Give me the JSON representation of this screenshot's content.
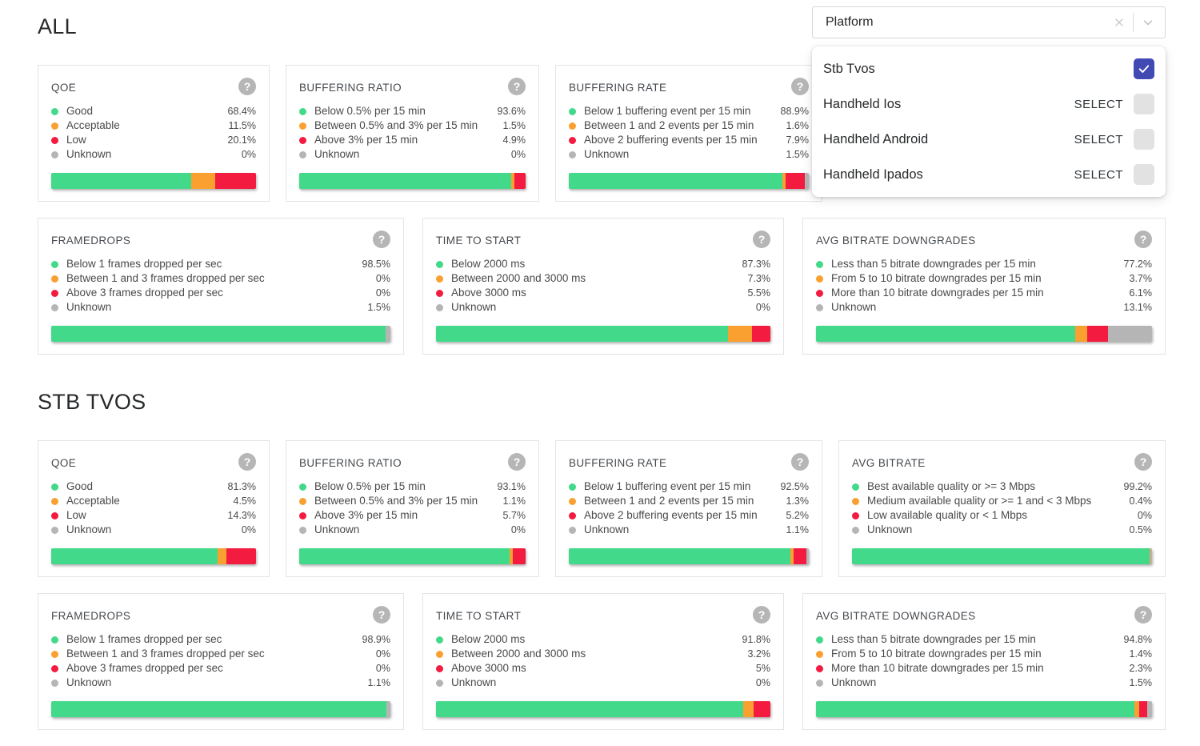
{
  "colors": {
    "good": "#43d98b",
    "acceptable": "#faa030",
    "low": "#f31b40",
    "unknown": "#b5b5b5",
    "checkbox_checked": "#4149b2"
  },
  "filter": {
    "label": "Platform",
    "options": [
      {
        "label": "Stb Tvos",
        "selected": true,
        "select_label": ""
      },
      {
        "label": "Handheld Ios",
        "selected": false,
        "select_label": "SELECT"
      },
      {
        "label": "Handheld Android",
        "selected": false,
        "select_label": "SELECT"
      },
      {
        "label": "Handheld Ipados",
        "selected": false,
        "select_label": "SELECT"
      }
    ]
  },
  "sections": [
    {
      "title": "ALL",
      "top_row": [
        {
          "kind": "qoe",
          "title": "QOE",
          "items": [
            {
              "level": "good",
              "label": "Good",
              "value": "68.4%",
              "pct": 68.4
            },
            {
              "level": "acceptable",
              "label": "Acceptable",
              "value": "11.5%",
              "pct": 11.5
            },
            {
              "level": "low",
              "label": "Low",
              "value": "20.1%",
              "pct": 20.1
            },
            {
              "level": "unknown",
              "label": "Unknown",
              "value": "0%",
              "pct": 0
            }
          ]
        },
        {
          "kind": "buffering-ratio",
          "title": "BUFFERING RATIO",
          "items": [
            {
              "level": "good",
              "label": "Below 0.5% per 15 min",
              "value": "93.6%",
              "pct": 93.6
            },
            {
              "level": "acceptable",
              "label": "Between 0.5% and 3% per 15 min",
              "value": "1.5%",
              "pct": 1.5
            },
            {
              "level": "low",
              "label": "Above 3% per 15 min",
              "value": "4.9%",
              "pct": 4.9
            },
            {
              "level": "unknown",
              "label": "Unknown",
              "value": "0%",
              "pct": 0
            }
          ]
        },
        {
          "kind": "buffering-rate",
          "title": "BUFFERING RATE",
          "items": [
            {
              "level": "good",
              "label": "Below 1 buffering event per 15 min",
              "value": "88.9%",
              "pct": 88.9
            },
            {
              "level": "acceptable",
              "label": "Between 1 and 2 events per 15 min",
              "value": "1.6%",
              "pct": 1.6
            },
            {
              "level": "low",
              "label": "Above 2 buffering events per 15 min",
              "value": "7.9%",
              "pct": 7.9
            },
            {
              "level": "unknown",
              "label": "Unknown",
              "value": "1.5%",
              "pct": 1.5
            }
          ]
        }
      ],
      "bottom_row": [
        {
          "kind": "framedrops",
          "title": "FRAMEDROPS",
          "items": [
            {
              "level": "good",
              "label": "Below 1 frames dropped per sec",
              "value": "98.5%",
              "pct": 98.5
            },
            {
              "level": "acceptable",
              "label": "Between 1 and 3 frames dropped per sec",
              "value": "0%",
              "pct": 0
            },
            {
              "level": "low",
              "label": "Above 3 frames dropped per sec",
              "value": "0%",
              "pct": 0
            },
            {
              "level": "unknown",
              "label": "Unknown",
              "value": "1.5%",
              "pct": 1.5
            }
          ]
        },
        {
          "kind": "time-to-start",
          "title": "TIME TO START",
          "items": [
            {
              "level": "good",
              "label": "Below 2000 ms",
              "value": "87.3%",
              "pct": 87.3
            },
            {
              "level": "acceptable",
              "label": "Between 2000 and 3000 ms",
              "value": "7.3%",
              "pct": 7.3
            },
            {
              "level": "low",
              "label": "Above 3000 ms",
              "value": "5.5%",
              "pct": 5.5
            },
            {
              "level": "unknown",
              "label": "Unknown",
              "value": "0%",
              "pct": 0
            }
          ]
        },
        {
          "kind": "avg-bitrate-downgrades",
          "title": "AVG BITRATE DOWNGRADES",
          "items": [
            {
              "level": "good",
              "label": "Less than 5 bitrate downgrades per 15 min",
              "value": "77.2%",
              "pct": 77.2
            },
            {
              "level": "acceptable",
              "label": "From 5 to 10 bitrate downgrades per 15 min",
              "value": "3.7%",
              "pct": 3.7
            },
            {
              "level": "low",
              "label": "More than 10 bitrate downgrades per 15 min",
              "value": "6.1%",
              "pct": 6.1
            },
            {
              "level": "unknown",
              "label": "Unknown",
              "value": "13.1%",
              "pct": 13.1
            }
          ]
        }
      ]
    },
    {
      "title": "STB TVOS",
      "top_row": [
        {
          "kind": "qoe",
          "title": "QOE",
          "items": [
            {
              "level": "good",
              "label": "Good",
              "value": "81.3%",
              "pct": 81.3
            },
            {
              "level": "acceptable",
              "label": "Acceptable",
              "value": "4.5%",
              "pct": 4.5
            },
            {
              "level": "low",
              "label": "Low",
              "value": "14.3%",
              "pct": 14.3
            },
            {
              "level": "unknown",
              "label": "Unknown",
              "value": "0%",
              "pct": 0
            }
          ]
        },
        {
          "kind": "buffering-ratio",
          "title": "BUFFERING RATIO",
          "items": [
            {
              "level": "good",
              "label": "Below 0.5% per 15 min",
              "value": "93.1%",
              "pct": 93.1
            },
            {
              "level": "acceptable",
              "label": "Between 0.5% and 3% per 15 min",
              "value": "1.1%",
              "pct": 1.1
            },
            {
              "level": "low",
              "label": "Above 3% per 15 min",
              "value": "5.7%",
              "pct": 5.7
            },
            {
              "level": "unknown",
              "label": "Unknown",
              "value": "0%",
              "pct": 0
            }
          ]
        },
        {
          "kind": "buffering-rate",
          "title": "BUFFERING RATE",
          "items": [
            {
              "level": "good",
              "label": "Below 1 buffering event per 15 min",
              "value": "92.5%",
              "pct": 92.5
            },
            {
              "level": "acceptable",
              "label": "Between 1 and 2 events per 15 min",
              "value": "1.3%",
              "pct": 1.3
            },
            {
              "level": "low",
              "label": "Above 2 buffering events per 15 min",
              "value": "5.2%",
              "pct": 5.2
            },
            {
              "level": "unknown",
              "label": "Unknown",
              "value": "1.1%",
              "pct": 1.1
            }
          ]
        },
        {
          "kind": "avg-bitrate",
          "title": "AVG BITRATE",
          "items": [
            {
              "level": "good",
              "label": "Best available quality or >= 3 Mbps",
              "value": "99.2%",
              "pct": 99.2
            },
            {
              "level": "acceptable",
              "label": "Medium available quality or >= 1 and < 3 Mbps",
              "value": "0.4%",
              "pct": 0.4
            },
            {
              "level": "low",
              "label": "Low available quality or < 1 Mbps",
              "value": "0%",
              "pct": 0
            },
            {
              "level": "unknown",
              "label": "Unknown",
              "value": "0.5%",
              "pct": 0.5
            }
          ]
        }
      ],
      "bottom_row": [
        {
          "kind": "framedrops",
          "title": "FRAMEDROPS",
          "items": [
            {
              "level": "good",
              "label": "Below 1 frames dropped per sec",
              "value": "98.9%",
              "pct": 98.9
            },
            {
              "level": "acceptable",
              "label": "Between 1 and 3 frames dropped per sec",
              "value": "0%",
              "pct": 0
            },
            {
              "level": "low",
              "label": "Above 3 frames dropped per sec",
              "value": "0%",
              "pct": 0
            },
            {
              "level": "unknown",
              "label": "Unknown",
              "value": "1.1%",
              "pct": 1.1
            }
          ]
        },
        {
          "kind": "time-to-start",
          "title": "TIME TO START",
          "items": [
            {
              "level": "good",
              "label": "Below 2000 ms",
              "value": "91.8%",
              "pct": 91.8
            },
            {
              "level": "acceptable",
              "label": "Between 2000 and 3000 ms",
              "value": "3.2%",
              "pct": 3.2
            },
            {
              "level": "low",
              "label": "Above 3000 ms",
              "value": "5%",
              "pct": 5
            },
            {
              "level": "unknown",
              "label": "Unknown",
              "value": "0%",
              "pct": 0
            }
          ]
        },
        {
          "kind": "avg-bitrate-downgrades",
          "title": "AVG BITRATE DOWNGRADES",
          "items": [
            {
              "level": "good",
              "label": "Less than 5 bitrate downgrades per 15 min",
              "value": "94.8%",
              "pct": 94.8
            },
            {
              "level": "acceptable",
              "label": "From 5 to 10 bitrate downgrades per 15 min",
              "value": "1.4%",
              "pct": 1.4
            },
            {
              "level": "low",
              "label": "More than 10 bitrate downgrades per 15 min",
              "value": "2.3%",
              "pct": 2.3
            },
            {
              "level": "unknown",
              "label": "Unknown",
              "value": "1.5%",
              "pct": 1.5
            }
          ]
        }
      ]
    }
  ]
}
